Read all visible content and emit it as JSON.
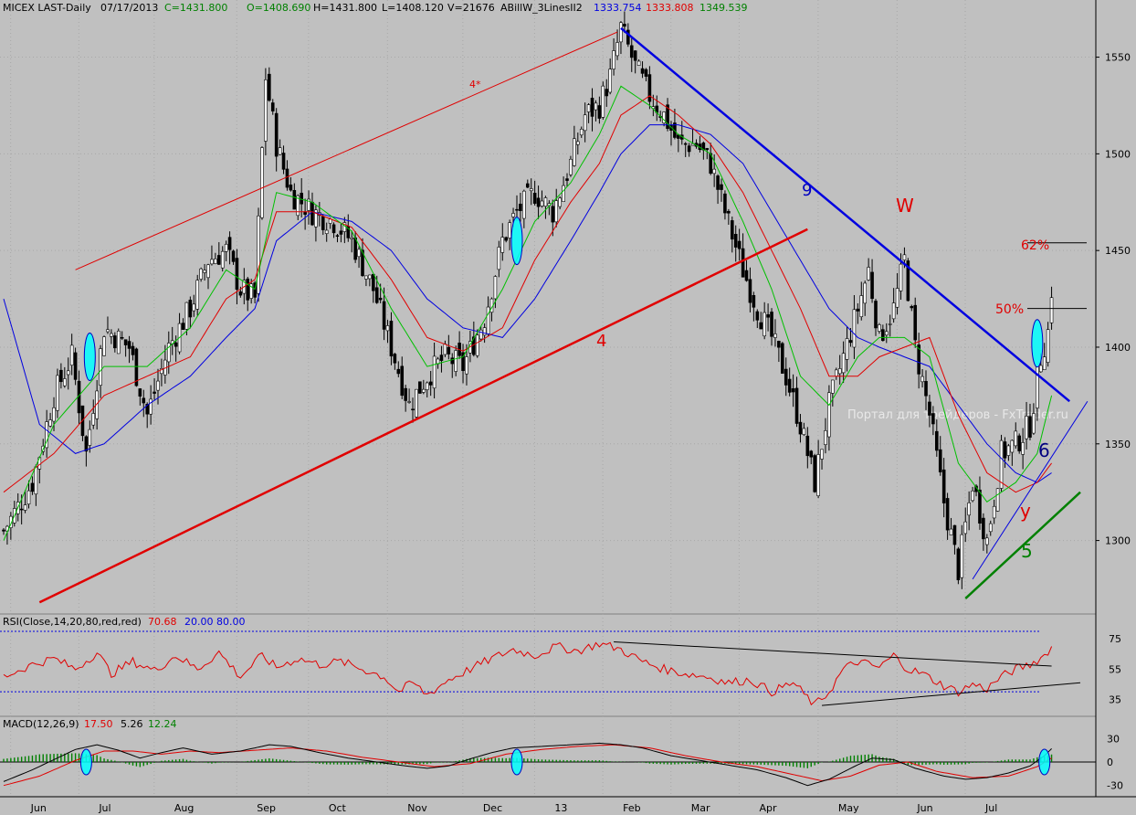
{
  "header": {
    "symbol": "MICEX LAST-Daily",
    "date": "07/17/2013",
    "close": "C=1431.800",
    "open": "O=1408.690",
    "high": "H=1431.800",
    "low": "L=1408.120",
    "volume": "V=21676",
    "indicator_name": "ABillW_3LinesII2",
    "ind_val_1": "1333.754",
    "ind_val_2": "1333.808",
    "ind_val_3": "1349.539"
  },
  "rsi_header": {
    "label": "RSI(Close,14,20,80,red,red)",
    "value": "70.68",
    "lower": "20.00",
    "upper": "80.00"
  },
  "macd_header": {
    "label": "MACD(12,26,9)",
    "macd": "17.50",
    "signal": "5.26",
    "hist": "12.24"
  },
  "watermark": "Портал для трейдеров - FxTrader.ru",
  "colors": {
    "background": "#c0c0c0",
    "up_candle": "#ffffff",
    "down_candle": "#000000",
    "ma_fast": "#00c000",
    "ma_mid": "#e00000",
    "ma_slow": "#0000e0",
    "trend_blue": "#0000e0",
    "trend_red": "#e00000",
    "trend_green": "#008000",
    "highlight": "#00ffff"
  },
  "annotations": {
    "wave_4_star": "4*",
    "wave_4": "4",
    "wave_9": "9",
    "wave_w": "W",
    "wave_6": "6",
    "wave_y": "y",
    "wave_5": "5",
    "fib_62": "62%",
    "fib_50": "50%"
  },
  "chart_data": [
    {
      "type": "candlestick",
      "title": "MICEX LAST-Daily",
      "x_labels": [
        "Jun",
        "Jul",
        "Aug",
        "Sep",
        "Oct",
        "Nov",
        "Dec",
        "13",
        "Feb",
        "Mar",
        "Apr",
        "May",
        "Jun",
        "Jul"
      ],
      "y_ticks": [
        1300,
        1350,
        1400,
        1450,
        1500,
        1550
      ],
      "ylim": [
        1262,
        1572
      ],
      "close_path": [
        [
          0,
          1305
        ],
        [
          8,
          1330
        ],
        [
          14,
          1375
        ],
        [
          19,
          1395
        ],
        [
          23,
          1345
        ],
        [
          28,
          1410
        ],
        [
          35,
          1400
        ],
        [
          40,
          1365
        ],
        [
          46,
          1400
        ],
        [
          52,
          1420
        ],
        [
          57,
          1445
        ],
        [
          62,
          1450
        ],
        [
          66,
          1430
        ],
        [
          70,
          1425
        ],
        [
          73,
          1540
        ],
        [
          76,
          1505
        ],
        [
          80,
          1480
        ],
        [
          86,
          1470
        ],
        [
          92,
          1465
        ],
        [
          97,
          1455
        ],
        [
          103,
          1430
        ],
        [
          108,
          1400
        ],
        [
          113,
          1370
        ],
        [
          118,
          1385
        ],
        [
          123,
          1395
        ],
        [
          128,
          1390
        ],
        [
          134,
          1415
        ],
        [
          139,
          1455
        ],
        [
          143,
          1470
        ],
        [
          148,
          1480
        ],
        [
          153,
          1470
        ],
        [
          158,
          1495
        ],
        [
          162,
          1520
        ],
        [
          166,
          1525
        ],
        [
          169,
          1540
        ],
        [
          172,
          1565
        ],
        [
          176,
          1545
        ],
        [
          180,
          1530
        ],
        [
          184,
          1520
        ],
        [
          188,
          1505
        ],
        [
          193,
          1505
        ],
        [
          197,
          1495
        ],
        [
          201,
          1470
        ],
        [
          206,
          1440
        ],
        [
          210,
          1420
        ],
        [
          214,
          1405
        ],
        [
          218,
          1385
        ],
        [
          222,
          1360
        ],
        [
          226,
          1330
        ],
        [
          230,
          1370
        ],
        [
          234,
          1395
        ],
        [
          238,
          1420
        ],
        [
          241,
          1440
        ],
        [
          244,
          1405
        ],
        [
          248,
          1420
        ],
        [
          251,
          1445
        ],
        [
          254,
          1400
        ],
        [
          258,
          1365
        ],
        [
          262,
          1320
        ],
        [
          266,
          1285
        ],
        [
          270,
          1330
        ],
        [
          274,
          1300
        ],
        [
          278,
          1345
        ],
        [
          282,
          1350
        ],
        [
          286,
          1360
        ],
        [
          289,
          1395
        ],
        [
          291,
          1408
        ],
        [
          292,
          1430
        ]
      ],
      "ma_fast_path": [
        [
          0,
          1300
        ],
        [
          14,
          1360
        ],
        [
          28,
          1390
        ],
        [
          40,
          1390
        ],
        [
          52,
          1410
        ],
        [
          62,
          1440
        ],
        [
          70,
          1430
        ],
        [
          76,
          1480
        ],
        [
          86,
          1475
        ],
        [
          97,
          1460
        ],
        [
          108,
          1420
        ],
        [
          118,
          1390
        ],
        [
          128,
          1395
        ],
        [
          139,
          1430
        ],
        [
          148,
          1465
        ],
        [
          158,
          1485
        ],
        [
          166,
          1510
        ],
        [
          172,
          1535
        ],
        [
          180,
          1525
        ],
        [
          188,
          1510
        ],
        [
          197,
          1500
        ],
        [
          206,
          1465
        ],
        [
          214,
          1430
        ],
        [
          222,
          1385
        ],
        [
          230,
          1370
        ],
        [
          238,
          1395
        ],
        [
          244,
          1405
        ],
        [
          251,
          1405
        ],
        [
          258,
          1395
        ],
        [
          266,
          1340
        ],
        [
          274,
          1320
        ],
        [
          282,
          1330
        ],
        [
          288,
          1345
        ],
        [
          292,
          1375
        ]
      ],
      "ma_mid_path": [
        [
          0,
          1325
        ],
        [
          14,
          1345
        ],
        [
          28,
          1375
        ],
        [
          40,
          1385
        ],
        [
          52,
          1395
        ],
        [
          62,
          1425
        ],
        [
          70,
          1435
        ],
        [
          76,
          1470
        ],
        [
          86,
          1470
        ],
        [
          97,
          1462
        ],
        [
          108,
          1435
        ],
        [
          118,
          1405
        ],
        [
          128,
          1398
        ],
        [
          139,
          1410
        ],
        [
          148,
          1445
        ],
        [
          158,
          1475
        ],
        [
          166,
          1495
        ],
        [
          172,
          1520
        ],
        [
          180,
          1530
        ],
        [
          188,
          1520
        ],
        [
          197,
          1505
        ],
        [
          206,
          1480
        ],
        [
          214,
          1450
        ],
        [
          222,
          1420
        ],
        [
          230,
          1385
        ],
        [
          238,
          1385
        ],
        [
          244,
          1395
        ],
        [
          251,
          1400
        ],
        [
          258,
          1405
        ],
        [
          266,
          1365
        ],
        [
          274,
          1335
        ],
        [
          282,
          1325
        ],
        [
          288,
          1330
        ],
        [
          292,
          1340
        ]
      ],
      "ma_slow_path": [
        [
          0,
          1425
        ],
        [
          10,
          1360
        ],
        [
          20,
          1345
        ],
        [
          28,
          1350
        ],
        [
          40,
          1370
        ],
        [
          52,
          1385
        ],
        [
          62,
          1405
        ],
        [
          70,
          1420
        ],
        [
          76,
          1455
        ],
        [
          86,
          1470
        ],
        [
          97,
          1465
        ],
        [
          108,
          1450
        ],
        [
          118,
          1425
        ],
        [
          128,
          1410
        ],
        [
          139,
          1405
        ],
        [
          148,
          1425
        ],
        [
          158,
          1455
        ],
        [
          166,
          1480
        ],
        [
          172,
          1500
        ],
        [
          180,
          1515
        ],
        [
          188,
          1515
        ],
        [
          197,
          1510
        ],
        [
          206,
          1495
        ],
        [
          214,
          1470
        ],
        [
          222,
          1445
        ],
        [
          230,
          1420
        ],
        [
          238,
          1405
        ],
        [
          244,
          1400
        ],
        [
          251,
          1395
        ],
        [
          258,
          1390
        ],
        [
          266,
          1370
        ],
        [
          274,
          1350
        ],
        [
          282,
          1335
        ],
        [
          288,
          1330
        ],
        [
          292,
          1335
        ]
      ],
      "trendlines": [
        {
          "color": "blue",
          "label": "9",
          "from": [
            172,
            1565
          ],
          "to": [
            297,
            1372
          ]
        },
        {
          "color": "red",
          "label": "4*",
          "from": [
            20,
            1440
          ],
          "to": [
            171,
            1563
          ]
        },
        {
          "color": "red",
          "label": "4",
          "from": [
            10,
            1268
          ],
          "to": [
            224,
            1461
          ]
        },
        {
          "color": "green",
          "label": "5",
          "from": [
            268,
            1270
          ],
          "to": [
            300,
            1325
          ]
        },
        {
          "color": "blue",
          "label": "6",
          "from": [
            270,
            1280
          ],
          "to": [
            302,
            1372
          ]
        }
      ],
      "fib_levels": [
        {
          "label": "62%",
          "value": 1454
        },
        {
          "label": "50%",
          "value": 1420
        }
      ]
    },
    {
      "type": "line",
      "title": "RSI(Close,14,20,80,red,red)",
      "y_ticks": [
        35,
        55,
        75
      ],
      "ylim": [
        25,
        83
      ],
      "levels": [
        20,
        80
      ],
      "last_value": 70.68,
      "path": [
        [
          0,
          50
        ],
        [
          8,
          58
        ],
        [
          14,
          62
        ],
        [
          20,
          55
        ],
        [
          26,
          66
        ],
        [
          30,
          52
        ],
        [
          36,
          60
        ],
        [
          42,
          54
        ],
        [
          48,
          64
        ],
        [
          54,
          55
        ],
        [
          60,
          66
        ],
        [
          66,
          50
        ],
        [
          72,
          64
        ],
        [
          76,
          56
        ],
        [
          82,
          62
        ],
        [
          88,
          58
        ],
        [
          94,
          60
        ],
        [
          100,
          55
        ],
        [
          106,
          50
        ],
        [
          110,
          40
        ],
        [
          114,
          46
        ],
        [
          118,
          38
        ],
        [
          124,
          48
        ],
        [
          130,
          55
        ],
        [
          136,
          62
        ],
        [
          142,
          68
        ],
        [
          148,
          64
        ],
        [
          154,
          70
        ],
        [
          160,
          67
        ],
        [
          166,
          72
        ],
        [
          172,
          68
        ],
        [
          178,
          60
        ],
        [
          184,
          55
        ],
        [
          190,
          52
        ],
        [
          196,
          50
        ],
        [
          202,
          46
        ],
        [
          208,
          48
        ],
        [
          214,
          40
        ],
        [
          220,
          46
        ],
        [
          226,
          31
        ],
        [
          230,
          40
        ],
        [
          234,
          55
        ],
        [
          238,
          60
        ],
        [
          244,
          56
        ],
        [
          248,
          64
        ],
        [
          252,
          55
        ],
        [
          256,
          52
        ],
        [
          262,
          44
        ],
        [
          266,
          40
        ],
        [
          270,
          45
        ],
        [
          274,
          42
        ],
        [
          278,
          50
        ],
        [
          282,
          55
        ],
        [
          286,
          58
        ],
        [
          290,
          64
        ],
        [
          292,
          70
        ]
      ]
    },
    {
      "type": "line",
      "title": "MACD(12,26,9)",
      "y_ticks": [
        -30,
        0,
        30
      ],
      "ylim": [
        -42,
        42
      ],
      "last_values": {
        "macd": 17.5,
        "signal": 5.26,
        "histogram": 12.24
      },
      "macd_path": [
        [
          0,
          -25
        ],
        [
          8,
          -10
        ],
        [
          14,
          3
        ],
        [
          20,
          16
        ],
        [
          26,
          22
        ],
        [
          32,
          15
        ],
        [
          38,
          5
        ],
        [
          44,
          12
        ],
        [
          50,
          18
        ],
        [
          58,
          10
        ],
        [
          66,
          14
        ],
        [
          74,
          22
        ],
        [
          80,
          20
        ],
        [
          88,
          12
        ],
        [
          96,
          5
        ],
        [
          104,
          0
        ],
        [
          112,
          -5
        ],
        [
          118,
          -8
        ],
        [
          124,
          -5
        ],
        [
          130,
          4
        ],
        [
          136,
          12
        ],
        [
          142,
          18
        ],
        [
          150,
          20
        ],
        [
          158,
          22
        ],
        [
          166,
          24
        ],
        [
          172,
          22
        ],
        [
          178,
          18
        ],
        [
          186,
          8
        ],
        [
          194,
          2
        ],
        [
          202,
          -4
        ],
        [
          210,
          -10
        ],
        [
          218,
          -20
        ],
        [
          224,
          -30
        ],
        [
          230,
          -22
        ],
        [
          236,
          -8
        ],
        [
          242,
          5
        ],
        [
          248,
          3
        ],
        [
          254,
          -8
        ],
        [
          262,
          -18
        ],
        [
          268,
          -22
        ],
        [
          274,
          -20
        ],
        [
          280,
          -14
        ],
        [
          286,
          -5
        ],
        [
          290,
          8
        ],
        [
          292,
          17
        ]
      ],
      "signal_path": [
        [
          0,
          -30
        ],
        [
          10,
          -18
        ],
        [
          20,
          2
        ],
        [
          28,
          14
        ],
        [
          36,
          14
        ],
        [
          44,
          10
        ],
        [
          52,
          14
        ],
        [
          60,
          12
        ],
        [
          70,
          15
        ],
        [
          80,
          18
        ],
        [
          90,
          14
        ],
        [
          100,
          6
        ],
        [
          110,
          0
        ],
        [
          120,
          -6
        ],
        [
          130,
          -2
        ],
        [
          140,
          10
        ],
        [
          150,
          16
        ],
        [
          160,
          20
        ],
        [
          170,
          22
        ],
        [
          180,
          18
        ],
        [
          190,
          8
        ],
        [
          200,
          0
        ],
        [
          210,
          -6
        ],
        [
          220,
          -16
        ],
        [
          228,
          -24
        ],
        [
          236,
          -18
        ],
        [
          244,
          -4
        ],
        [
          252,
          0
        ],
        [
          260,
          -12
        ],
        [
          270,
          -20
        ],
        [
          280,
          -18
        ],
        [
          288,
          -6
        ],
        [
          292,
          5
        ]
      ]
    }
  ]
}
